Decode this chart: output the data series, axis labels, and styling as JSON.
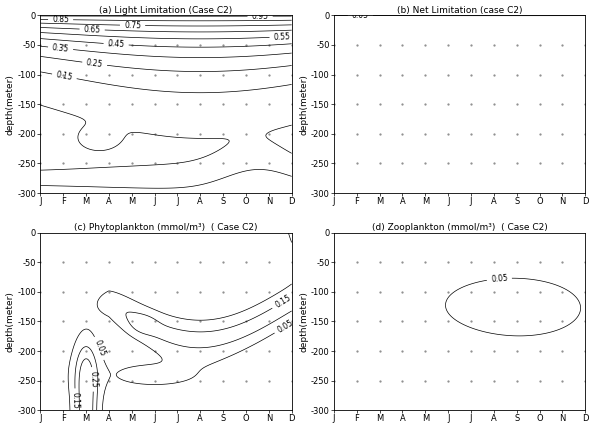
{
  "titles": [
    "(a) Light Limitation (Case C2)",
    "(b) Net Limitation (case C2)",
    "(c) Phytoplankton (mmol/m³)  ( Case C2)",
    "(d) Zooplankton (mmol/m³)  ( Case C2)"
  ],
  "ylabel": "depth(meter)",
  "months": [
    "J",
    "F",
    "M",
    "A",
    "M",
    "J",
    "J",
    "A",
    "S",
    "O",
    "N",
    "D"
  ],
  "depth_ticks": [
    0,
    -50,
    -100,
    -150,
    -200,
    -250,
    -300
  ],
  "figsize": [
    5.94,
    4.29
  ],
  "dpi": 100
}
